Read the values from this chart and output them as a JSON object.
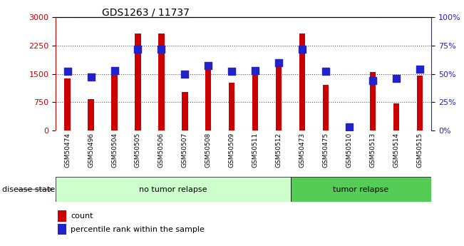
{
  "title": "GDS1263 / 11737",
  "samples": [
    "GSM50474",
    "GSM50496",
    "GSM50504",
    "GSM50505",
    "GSM50506",
    "GSM50507",
    "GSM50508",
    "GSM50509",
    "GSM50511",
    "GSM50512",
    "GSM50473",
    "GSM50475",
    "GSM50510",
    "GSM50513",
    "GSM50514",
    "GSM50515"
  ],
  "counts": [
    1380,
    820,
    1490,
    2560,
    2570,
    1020,
    1600,
    1260,
    1490,
    1750,
    2570,
    1200,
    100,
    1550,
    720,
    1460
  ],
  "percentiles": [
    52,
    47,
    53,
    72,
    72,
    50,
    57,
    52,
    53,
    60,
    72,
    52,
    3,
    44,
    46,
    54
  ],
  "group_labels": [
    "no tumor relapse",
    "tumor relapse"
  ],
  "n_no_tumor": 10,
  "n_tumor": 6,
  "light_green": "#ccffcc",
  "dark_green": "#55cc55",
  "bar_color": "#cc0000",
  "dot_color": "#2222cc",
  "ylim_left": [
    0,
    3000
  ],
  "ylim_right": [
    0,
    100
  ],
  "yticks_left": [
    0,
    750,
    1500,
    2250,
    3000
  ],
  "yticks_right": [
    0,
    25,
    50,
    75,
    100
  ],
  "ytick_labels_right": [
    "0%",
    "25%",
    "50%",
    "75%",
    "100%"
  ],
  "bg_color": "#ffffff",
  "grid_color": "#555555",
  "tick_color_left": "#cc0000",
  "tick_color_right": "#2222cc",
  "bar_width": 0.25,
  "dot_size": 55,
  "legend_items": [
    "count",
    "percentile rank within the sample"
  ],
  "disease_state_label": "disease state",
  "separator_index": 10
}
